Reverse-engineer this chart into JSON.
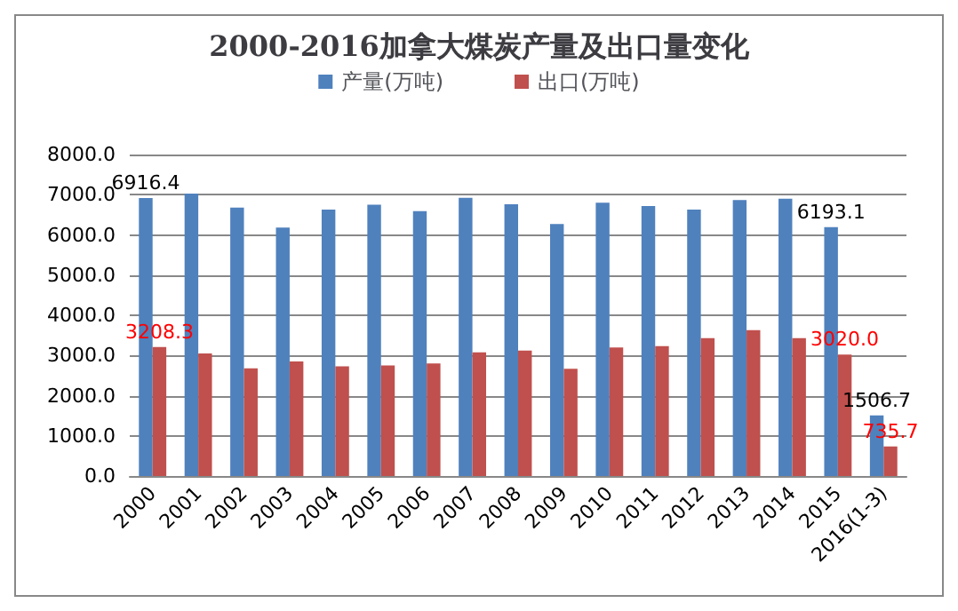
{
  "chart_data": {
    "type": "bar",
    "title": "2000-2016加拿大煤炭产量及出口量变化",
    "categories": [
      "2000",
      "2001",
      "2002",
      "2003",
      "2004",
      "2005",
      "2006",
      "2007",
      "2008",
      "2009",
      "2010",
      "2011",
      "2012",
      "2013",
      "2014",
      "2015",
      "2016(1-3)"
    ],
    "series": [
      {
        "name": "产量(万吨)",
        "color": "#4f81bd",
        "values": [
          6916.4,
          7030,
          6680,
          6180,
          6630,
          6750,
          6590,
          6920,
          6760,
          6270,
          6800,
          6720,
          6630,
          6870,
          6900,
          6193.1,
          1506.7
        ],
        "value_labels": [
          "6916.4",
          null,
          null,
          null,
          null,
          null,
          null,
          null,
          null,
          null,
          null,
          null,
          null,
          null,
          null,
          "6193.1",
          "1506.7"
        ]
      },
      {
        "name": "出口(万吨)",
        "color": "#c0504d",
        "values": [
          3208.3,
          3050,
          2680,
          2850,
          2730,
          2750,
          2800,
          3080,
          3120,
          2670,
          3200,
          3230,
          3430,
          3630,
          3430,
          3020.0,
          735.7
        ],
        "value_labels": [
          "3208.3",
          null,
          null,
          null,
          null,
          null,
          null,
          null,
          null,
          null,
          null,
          null,
          null,
          null,
          null,
          "3020.0",
          "735.7"
        ]
      }
    ],
    "ylim": [
      0,
      8000
    ],
    "yticks": [
      {
        "value": 0,
        "label": "0.0"
      },
      {
        "value": 1000,
        "label": "1000.0"
      },
      {
        "value": 2000,
        "label": "2000.0"
      },
      {
        "value": 3000,
        "label": "3000.0"
      },
      {
        "value": 4000,
        "label": "4000.0"
      },
      {
        "value": 5000,
        "label": "5000.0"
      },
      {
        "value": 6000,
        "label": "6000.0"
      },
      {
        "value": 7000,
        "label": "7000.0"
      },
      {
        "value": 8000,
        "label": "8000.0"
      }
    ],
    "grid": "y",
    "legend": "top"
  }
}
